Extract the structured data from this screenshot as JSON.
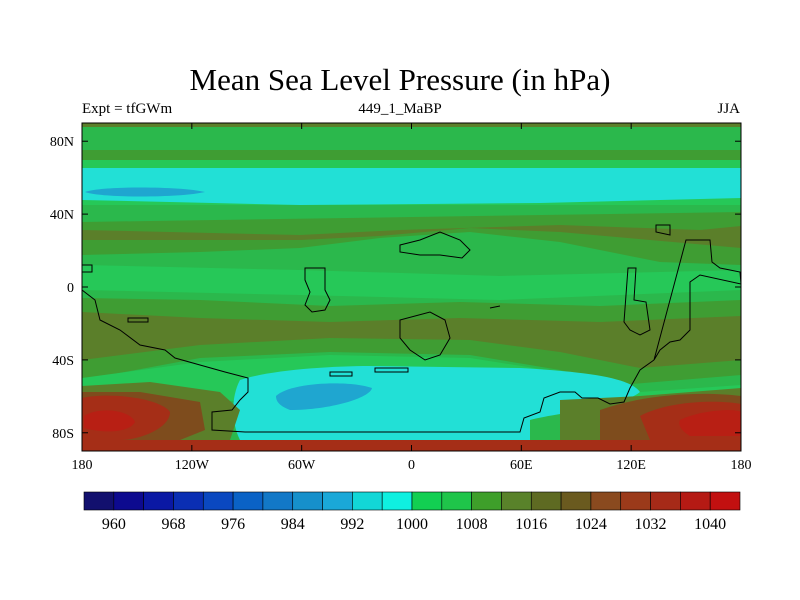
{
  "chart_data": {
    "type": "filled-contour-map",
    "title": "Mean Sea Level Pressure (in hPa)",
    "subtitle_left": "Expt = tfGWm",
    "subtitle_center": "449_1_MaBP",
    "subtitle_right": "JJA",
    "x_ticks": [
      "180",
      "120W",
      "60W",
      "0",
      "60E",
      "120E",
      "180"
    ],
    "x_tick_values": [
      -180,
      -120,
      -60,
      0,
      60,
      120,
      180
    ],
    "y_ticks": [
      "80N",
      "40N",
      "0",
      "40S",
      "80S"
    ],
    "y_tick_values": [
      80,
      40,
      0,
      -40,
      -80
    ],
    "xlim": [
      -180,
      180
    ],
    "ylim": [
      -90,
      90
    ],
    "units": "hPa",
    "colorbar_labels": [
      "960",
      "968",
      "976",
      "984",
      "992",
      "1000",
      "1008",
      "1016",
      "1024",
      "1032",
      "1040"
    ],
    "colorbar_levels": [
      960,
      964,
      968,
      972,
      976,
      980,
      984,
      988,
      992,
      996,
      1000,
      1004,
      1008,
      1012,
      1016,
      1020,
      1024,
      1028,
      1032,
      1036,
      1040
    ],
    "colorbar_colors": [
      "#12106e",
      "#0d0a8f",
      "#0a18a4",
      "#0a2eb3",
      "#0a48c0",
      "#0a62c6",
      "#1278c7",
      "#1690cb",
      "#1aa8d8",
      "#12d7d7",
      "#0ff0e0",
      "#12cf52",
      "#1fc54a",
      "#3e9f2a",
      "#59822a",
      "#5e6a22",
      "#6a5a1f",
      "#8a4a1f",
      "#9b3a1a",
      "#a62a18",
      "#b51a14",
      "#c21010"
    ],
    "colors": {
      "p1000": "#22e0d6",
      "p996": "#1fa6d0",
      "p1004": "#26c858",
      "p1008": "#2bb84c",
      "p1012": "#3f9d33",
      "p1016": "#5b7f2a",
      "p1024": "#7e4c1d",
      "p1032": "#a52e17",
      "p1040": "#b81f14",
      "coast": "#000000"
    }
  }
}
